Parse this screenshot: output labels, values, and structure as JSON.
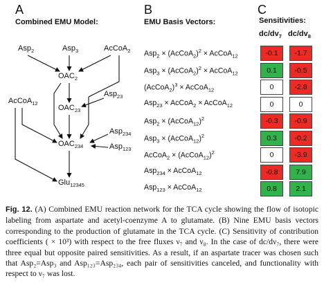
{
  "panel_a": {
    "letter": "A",
    "title": "Combined EMU Model:",
    "nodes": {
      "asp2": {
        "base": "Asp",
        "sub": "2"
      },
      "asp3": {
        "base": "Asp",
        "sub": "3"
      },
      "acoa2": {
        "base": "AcCoA",
        "sub": "2"
      },
      "oac2": {
        "base": "OAC",
        "sub": "2"
      },
      "asp23": {
        "base": "Asp",
        "sub": "23"
      },
      "acoa12": {
        "base": "AcCoA",
        "sub": "12"
      },
      "oac23": {
        "base": "OAC",
        "sub": "23"
      },
      "asp234": {
        "base": "Asp",
        "sub": "234"
      },
      "oac234": {
        "base": "OAC",
        "sub": "234"
      },
      "asp123": {
        "base": "Asp",
        "sub": "123"
      },
      "glu": {
        "base": "Glu",
        "sub": "12345"
      }
    }
  },
  "panel_b": {
    "letter": "B",
    "title": "EMU Basis Vectors:",
    "vectors": [
      {
        "parts": [
          "Asp",
          "2",
          " × (AcCoA",
          "2",
          ")",
          "2",
          " × AcCoA",
          "12",
          ""
        ]
      },
      {
        "parts": [
          "Asp",
          "3",
          " × (AcCoA",
          "2",
          ")",
          "2",
          " × AcCoA",
          "12",
          ""
        ]
      },
      {
        "parts": [
          "(AcCoA",
          "2",
          ")",
          "3",
          " × AcCoA",
          "12",
          "",
          "",
          ""
        ]
      },
      {
        "parts": [
          "Asp",
          "23",
          " × AcCoA",
          "2",
          " × AcCoA",
          "12",
          "",
          "",
          ""
        ]
      },
      {
        "parts": [
          "Asp",
          "2",
          " × (AcCoA",
          "12",
          ")",
          "2",
          "",
          "",
          ""
        ]
      },
      {
        "parts": [
          "Asp",
          "3",
          " × (AcCoA",
          "12",
          ")",
          "2",
          "",
          "",
          ""
        ]
      },
      {
        "parts": [
          "AcCoA",
          "2",
          " × (AcCoA",
          "12",
          ")",
          "2",
          "",
          "",
          ""
        ]
      },
      {
        "parts": [
          "Asp",
          "234",
          " × AcCoA",
          "12",
          "",
          "",
          "",
          "",
          ""
        ]
      },
      {
        "parts": [
          "Asp",
          "123",
          " × AcCoA",
          "12",
          "",
          "",
          "",
          "",
          ""
        ]
      }
    ]
  },
  "panel_c": {
    "letter": "C",
    "title": "Sensitivities:",
    "col1": {
      "base": "dc/dv",
      "sub": "7"
    },
    "col2": {
      "base": "dc/dv",
      "sub": "8"
    },
    "rows": [
      {
        "v7": "-0.1",
        "c7": "#ee2a24",
        "v8": "-1.7",
        "c8": "#ee2a24"
      },
      {
        "v7": "0.1",
        "c7": "#2fb34a",
        "v8": "-0.5",
        "c8": "#ee2a24"
      },
      {
        "v7": "0",
        "c7": "#ffffff",
        "v8": "-2.8",
        "c8": "#ee2a24"
      },
      {
        "v7": "0",
        "c7": "#ffffff",
        "v8": "0",
        "c8": "#ffffff"
      },
      {
        "v7": "-0.3",
        "c7": "#ee2a24",
        "v8": "-0.9",
        "c8": "#ee2a24"
      },
      {
        "v7": "0.3",
        "c7": "#2fb34a",
        "v8": "-0.2",
        "c8": "#ee2a24"
      },
      {
        "v7": "0",
        "c7": "#ffffff",
        "v8": "-3.9",
        "c8": "#ee2a24"
      },
      {
        "v7": "-0.8",
        "c7": "#ee2a24",
        "v8": "7.9",
        "c8": "#2fb34a"
      },
      {
        "v7": "0.8",
        "c7": "#2fb34a",
        "v8": "2.1",
        "c8": "#2fb34a"
      }
    ]
  },
  "caption": {
    "label": "Fig. 12.",
    "text": "(A) Combined EMU reaction network for the TCA cycle showing the flow of isotopic labeling from aspartate and acetyl-coenzyme A to glutamate. (B) Nine EMU basis vectors corresponding to the production of glutamate in the TCA cycle. (C) Sensitivity of contribution coefficients ( × 10³) with respect to the free fluxes ν₇ and ν₈. In the case of dc/dν₇, there were three equal but opposite paired sensitivities. As a result, if an aspartate tracer was chosen such that Asp₂=Asp₃ and Asp₁₂₃=Asp₂₃₄, each pair of sensitivities canceled, and functionality with respect to ν₇ was lost."
  }
}
